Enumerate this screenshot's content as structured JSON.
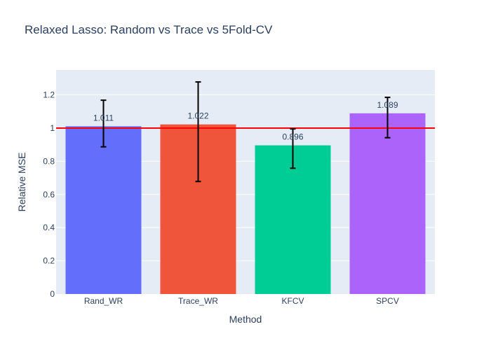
{
  "chart_data": {
    "type": "bar",
    "title": "Relaxed Lasso: Random vs Trace vs 5Fold-CV",
    "xlabel": "Method",
    "ylabel": "Relative MSE",
    "categories": [
      "Rand_WR",
      "Trace_WR",
      "KFCV",
      "SPCV"
    ],
    "values": [
      1.011,
      1.022,
      0.896,
      1.089
    ],
    "value_labels": [
      "1.011",
      "1.022",
      "0.896",
      "1.089"
    ],
    "error_low": [
      0.887,
      0.678,
      0.758,
      0.942
    ],
    "error_high": [
      1.168,
      1.278,
      0.995,
      1.185
    ],
    "colors": [
      "#636efa",
      "#ef553b",
      "#00cc96",
      "#ab63fa"
    ],
    "reference_line": {
      "y": 1,
      "color": "#ff0000"
    },
    "ylim": [
      0,
      1.35
    ],
    "yticks": [
      0,
      0.2,
      0.4,
      0.6,
      0.8,
      1,
      1.2
    ],
    "ytick_labels": [
      "0",
      "0.2",
      "0.4",
      "0.6",
      "0.8",
      "1",
      "1.2"
    ],
    "grid": true,
    "plot_background": "#e5ecf6"
  }
}
